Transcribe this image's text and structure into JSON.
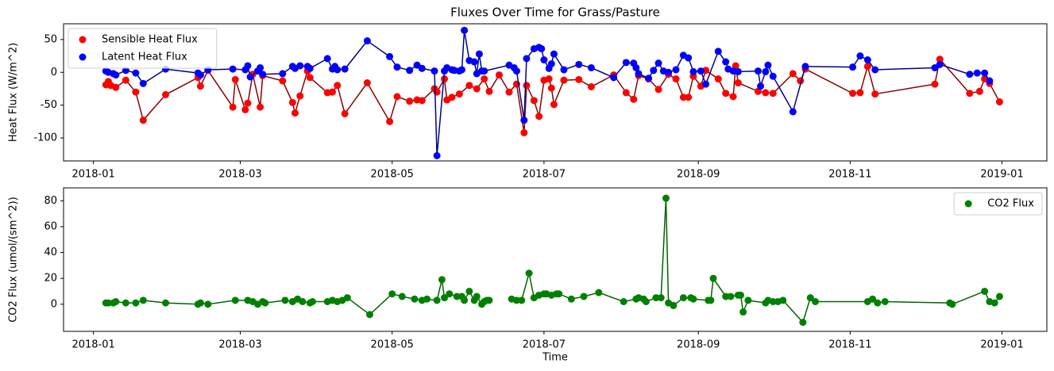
{
  "chart_data": [
    {
      "type": "scatter",
      "title": "Fluxes Over Time for Grass/Pasture",
      "ylabel": "Heat Flux (W/m^2)",
      "legend": "upper left",
      "xlim": [
        "2017-12-20",
        "2019-01-19"
      ],
      "xticks": [
        {
          "value": "2018-01-01",
          "label": "2018-01"
        },
        {
          "value": "2018-03-01",
          "label": "2018-03"
        },
        {
          "value": "2018-05-01",
          "label": "2018-05"
        },
        {
          "value": "2018-07-01",
          "label": "2018-07"
        },
        {
          "value": "2018-09-01",
          "label": "2018-09"
        },
        {
          "value": "2018-11-01",
          "label": "2018-11"
        },
        {
          "value": "2019-01-01",
          "label": "2019-01"
        }
      ],
      "ylim": [
        -135,
        74
      ],
      "yticks": [
        -100,
        -50,
        0,
        50
      ],
      "series": [
        {
          "name": "Sensible Heat Flux",
          "color": "#ff0000",
          "line_color": "#8b0000",
          "x": [
            "2018-01-06",
            "2018-01-07",
            "2018-01-08",
            "2018-01-10",
            "2018-01-14",
            "2018-01-18",
            "2018-01-21",
            "2018-01-30",
            "2018-02-12",
            "2018-02-13",
            "2018-02-16",
            "2018-02-26",
            "2018-02-27",
            "2018-03-03",
            "2018-03-04",
            "2018-03-06",
            "2018-03-09",
            "2018-03-10",
            "2018-03-18",
            "2018-03-22",
            "2018-03-23",
            "2018-03-25",
            "2018-03-28",
            "2018-03-29",
            "2018-04-05",
            "2018-04-07",
            "2018-04-09",
            "2018-04-12",
            "2018-04-21",
            "2018-04-30",
            "2018-05-03",
            "2018-05-08",
            "2018-05-11",
            "2018-05-13",
            "2018-05-18",
            "2018-05-19",
            "2018-05-22",
            "2018-05-23",
            "2018-05-25",
            "2018-05-28",
            "2018-06-01",
            "2018-06-04",
            "2018-06-07",
            "2018-06-09",
            "2018-06-13",
            "2018-06-17",
            "2018-06-20",
            "2018-06-23",
            "2018-06-24",
            "2018-06-27",
            "2018-06-29",
            "2018-07-01",
            "2018-07-03",
            "2018-07-04",
            "2018-07-05",
            "2018-07-09",
            "2018-07-15",
            "2018-07-20",
            "2018-07-29",
            "2018-08-03",
            "2018-08-06",
            "2018-08-08",
            "2018-08-12",
            "2018-08-16",
            "2018-08-20",
            "2018-08-23",
            "2018-08-26",
            "2018-08-28",
            "2018-08-30",
            "2018-09-02",
            "2018-09-04",
            "2018-09-09",
            "2018-09-12",
            "2018-09-15",
            "2018-09-16",
            "2018-09-17",
            "2018-09-25",
            "2018-09-28",
            "2018-10-01",
            "2018-10-09",
            "2018-10-12",
            "2018-10-14",
            "2018-11-02",
            "2018-11-05",
            "2018-11-08",
            "2018-11-11",
            "2018-12-05",
            "2018-12-07",
            "2018-12-19",
            "2018-12-23",
            "2018-12-25",
            "2018-12-27",
            "2018-12-31"
          ],
          "values": [
            -19,
            -14,
            -20,
            -23,
            -12,
            -30,
            -73,
            -34,
            -8,
            -21,
            3,
            -53,
            -11,
            -57,
            -47,
            -3,
            -53,
            -5,
            -13,
            -46,
            -62,
            -36,
            2,
            -8,
            -31,
            -30,
            -20,
            -63,
            -16,
            -75,
            -37,
            -44,
            -42,
            -43,
            -25,
            -30,
            -10,
            -42,
            -38,
            -33,
            -20,
            -25,
            -10,
            -29,
            -4,
            -30,
            -18,
            -92,
            -20,
            -43,
            -67,
            -12,
            -10,
            -24,
            -49,
            -12,
            -11,
            -22,
            -4,
            -31,
            -41,
            -5,
            -10,
            -26,
            -3,
            -10,
            -38,
            -38,
            -6,
            -21,
            3,
            -10,
            -32,
            -37,
            10,
            -16,
            -29,
            -31,
            -32,
            -2,
            -13,
            5,
            -32,
            -31,
            9,
            -33,
            -18,
            20,
            -32,
            -29,
            -10,
            -17,
            -45
          ]
        },
        {
          "name": "Latent Heat Flux",
          "color": "#0000ff",
          "line_color": "#00008b",
          "x": [
            "2018-01-06",
            "2018-01-07",
            "2018-01-09",
            "2018-01-10",
            "2018-01-14",
            "2018-01-18",
            "2018-01-21",
            "2018-01-30",
            "2018-02-12",
            "2018-02-13",
            "2018-02-16",
            "2018-02-26",
            "2018-03-03",
            "2018-03-04",
            "2018-03-05",
            "2018-03-08",
            "2018-03-09",
            "2018-03-10",
            "2018-03-18",
            "2018-03-22",
            "2018-03-23",
            "2018-03-25",
            "2018-03-28",
            "2018-03-29",
            "2018-04-05",
            "2018-04-07",
            "2018-04-08",
            "2018-04-09",
            "2018-04-12",
            "2018-04-21",
            "2018-04-30",
            "2018-05-03",
            "2018-05-08",
            "2018-05-11",
            "2018-05-13",
            "2018-05-18",
            "2018-05-19",
            "2018-05-22",
            "2018-05-23",
            "2018-05-25",
            "2018-05-26",
            "2018-05-28",
            "2018-05-29",
            "2018-05-30",
            "2018-06-01",
            "2018-06-03",
            "2018-06-04",
            "2018-06-05",
            "2018-06-06",
            "2018-06-07",
            "2018-06-17",
            "2018-06-19",
            "2018-06-20",
            "2018-06-23",
            "2018-06-24",
            "2018-06-27",
            "2018-06-29",
            "2018-06-30",
            "2018-07-01",
            "2018-07-03",
            "2018-07-04",
            "2018-07-05",
            "2018-07-09",
            "2018-07-15",
            "2018-07-20",
            "2018-07-29",
            "2018-08-03",
            "2018-08-06",
            "2018-08-07",
            "2018-08-08",
            "2018-08-12",
            "2018-08-14",
            "2018-08-16",
            "2018-08-18",
            "2018-08-20",
            "2018-08-23",
            "2018-08-26",
            "2018-08-28",
            "2018-08-30",
            "2018-09-02",
            "2018-09-04",
            "2018-09-09",
            "2018-09-12",
            "2018-09-13",
            "2018-09-15",
            "2018-09-17",
            "2018-09-25",
            "2018-09-26",
            "2018-09-28",
            "2018-09-29",
            "2018-10-01",
            "2018-10-09",
            "2018-10-14",
            "2018-11-02",
            "2018-11-05",
            "2018-11-08",
            "2018-11-11",
            "2018-12-05",
            "2018-12-07",
            "2018-12-19",
            "2018-12-22",
            "2018-12-25",
            "2018-12-27"
          ],
          "values": [
            2,
            0,
            -2,
            -4,
            3,
            -1,
            -17,
            5,
            -1,
            -4,
            4,
            5,
            4,
            10,
            -7,
            2,
            7,
            -3,
            -2,
            9,
            6,
            10,
            9,
            6,
            21,
            5,
            9,
            4,
            5,
            48,
            24,
            8,
            3,
            11,
            6,
            2,
            -127,
            2,
            7,
            4,
            3,
            2,
            4,
            64,
            18,
            16,
            -2,
            28,
            2,
            2,
            11,
            7,
            2,
            -73,
            21,
            36,
            38,
            36,
            19,
            6,
            13,
            28,
            4,
            12,
            7,
            -8,
            15,
            14,
            7,
            -2,
            -9,
            3,
            14,
            2,
            0,
            4,
            26,
            22,
            1,
            2,
            -18,
            32,
            16,
            5,
            2,
            1,
            2,
            -21,
            1,
            11,
            -6,
            -60,
            9,
            8,
            25,
            19,
            4,
            7,
            12,
            -3,
            -1,
            -1,
            -13
          ]
        }
      ]
    },
    {
      "type": "scatter",
      "xlabel": "Time",
      "ylabel": "CO2 Flux (umol/(sm^2))",
      "legend": "upper right",
      "xlim": [
        "2017-12-20",
        "2019-01-19"
      ],
      "xticks": [
        {
          "value": "2018-01-01",
          "label": "2018-01"
        },
        {
          "value": "2018-03-01",
          "label": "2018-03"
        },
        {
          "value": "2018-05-01",
          "label": "2018-05"
        },
        {
          "value": "2018-07-01",
          "label": "2018-07"
        },
        {
          "value": "2018-09-01",
          "label": "2018-09"
        },
        {
          "value": "2018-11-01",
          "label": "2018-11"
        },
        {
          "value": "2019-01-01",
          "label": "2019-01"
        }
      ],
      "ylim": [
        -21,
        90
      ],
      "yticks": [
        0,
        20,
        40,
        60,
        80
      ],
      "series": [
        {
          "name": "CO2 Flux",
          "color": "#008000",
          "line_color": "#006400",
          "x": [
            "2018-01-06",
            "2018-01-07",
            "2018-01-09",
            "2018-01-10",
            "2018-01-14",
            "2018-01-18",
            "2018-01-21",
            "2018-01-30",
            "2018-02-12",
            "2018-02-13",
            "2018-02-16",
            "2018-02-27",
            "2018-03-04",
            "2018-03-06",
            "2018-03-08",
            "2018-03-10",
            "2018-03-11",
            "2018-03-19",
            "2018-03-22",
            "2018-03-24",
            "2018-03-26",
            "2018-03-29",
            "2018-03-30",
            "2018-04-05",
            "2018-04-07",
            "2018-04-09",
            "2018-04-11",
            "2018-04-13",
            "2018-04-22",
            "2018-05-01",
            "2018-05-05",
            "2018-05-10",
            "2018-05-13",
            "2018-05-15",
            "2018-05-19",
            "2018-05-21",
            "2018-05-22",
            "2018-05-24",
            "2018-05-27",
            "2018-05-29",
            "2018-05-30",
            "2018-06-01",
            "2018-06-03",
            "2018-06-04",
            "2018-06-06",
            "2018-06-07",
            "2018-06-08",
            "2018-06-09",
            "2018-06-14",
            "2018-06-18",
            "2018-06-20",
            "2018-06-22",
            "2018-06-25",
            "2018-06-27",
            "2018-06-29",
            "2018-07-01",
            "2018-07-02",
            "2018-07-04",
            "2018-07-06",
            "2018-07-07",
            "2018-07-12",
            "2018-07-17",
            "2018-07-23",
            "2018-08-02",
            "2018-08-07",
            "2018-08-08",
            "2018-08-10",
            "2018-08-11",
            "2018-08-15",
            "2018-08-17",
            "2018-08-19",
            "2018-08-20",
            "2018-08-22",
            "2018-08-26",
            "2018-08-29",
            "2018-08-30",
            "2018-09-05",
            "2018-09-06",
            "2018-09-07",
            "2018-09-12",
            "2018-09-14",
            "2018-09-17",
            "2018-09-18",
            "2018-09-19",
            "2018-09-21",
            "2018-09-28",
            "2018-09-29",
            "2018-10-01",
            "2018-10-03",
            "2018-10-05",
            "2018-10-13",
            "2018-10-16",
            "2018-10-18",
            "2018-11-08",
            "2018-11-10",
            "2018-11-12",
            "2018-11-15",
            "2018-12-11",
            "2018-12-12",
            "2018-12-25",
            "2018-12-27",
            "2018-12-29",
            "2018-12-31"
          ],
          "values": [
            1,
            1,
            1,
            2,
            1,
            1,
            3,
            1,
            0,
            1,
            0,
            3,
            3,
            2,
            0,
            2,
            1,
            3,
            2,
            4,
            2,
            1,
            2,
            2,
            3,
            2,
            3,
            5,
            -8,
            8,
            6,
            4,
            3,
            4,
            3,
            19,
            5,
            8,
            6,
            6,
            3,
            10,
            3,
            6,
            0,
            2,
            3,
            3,
            null,
            4,
            3,
            3,
            24,
            5,
            7,
            8,
            8,
            7,
            8,
            8,
            4,
            6,
            9,
            2,
            4,
            5,
            4,
            2,
            5,
            5,
            82,
            1,
            -1,
            5,
            5,
            4,
            3,
            3,
            20,
            6,
            6,
            7,
            7,
            -6,
            3,
            1,
            3,
            2,
            2,
            3,
            -14,
            5,
            2,
            2,
            4,
            1,
            2,
            1,
            0,
            10,
            2,
            1,
            6
          ]
        }
      ]
    }
  ]
}
